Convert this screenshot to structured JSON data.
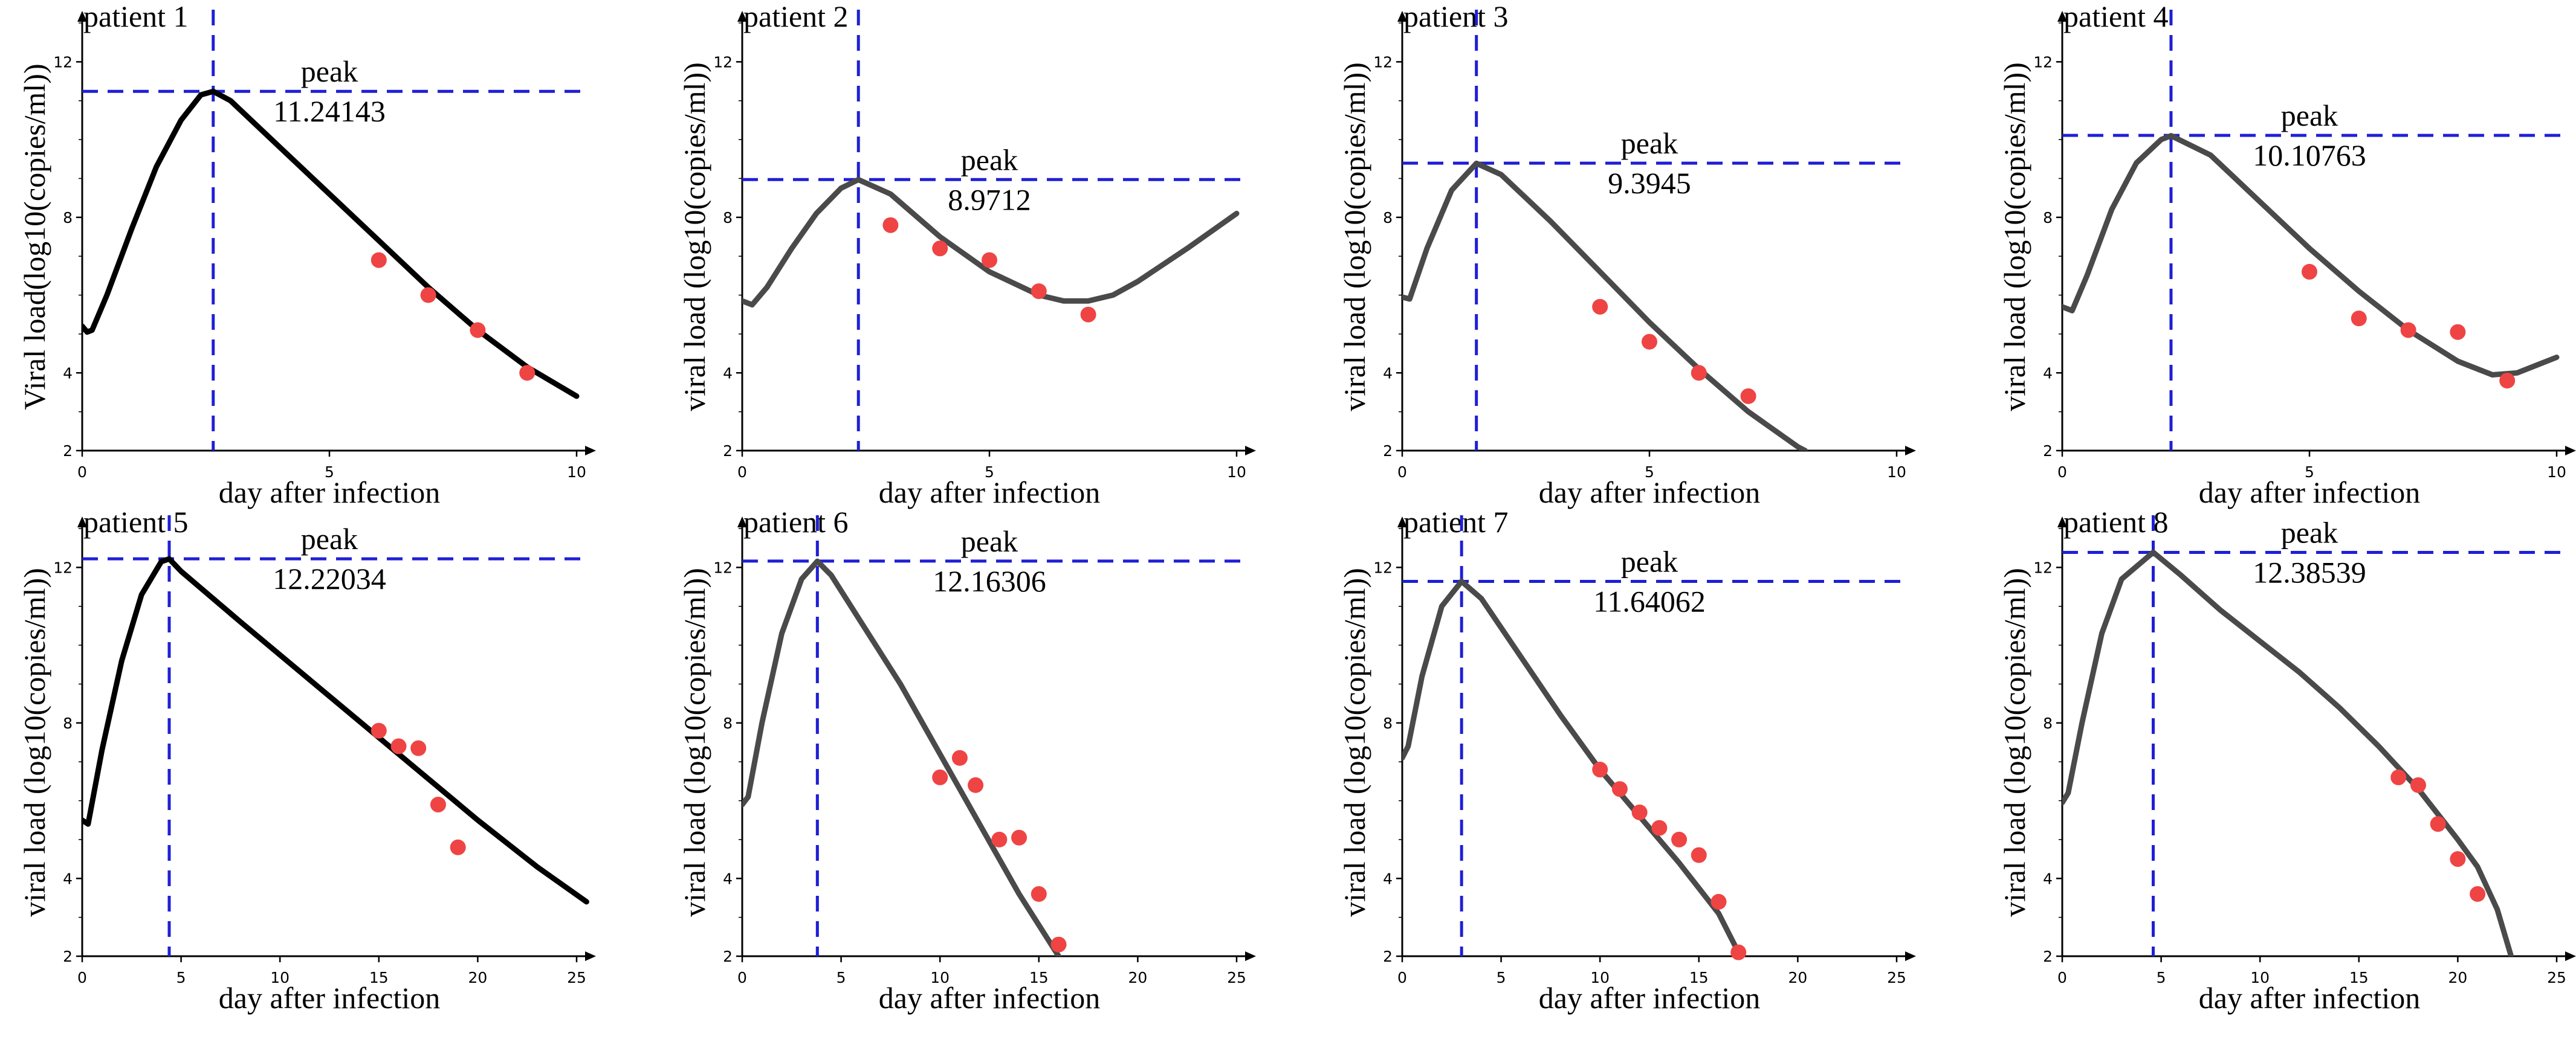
{
  "figure": {
    "description_free": true
  },
  "style": {
    "curve_dark": "#000000",
    "curve_gray": "#4a4a4a",
    "ref_line": "#1f1fd6",
    "point": "#ef4444",
    "axis": "#000000"
  },
  "chart_data": [
    {
      "type": "line",
      "panel_title": "patient 1",
      "xlabel": "day after infection",
      "ylabel": "Viral load(log10(copies/ml))",
      "xlim": [
        0,
        10
      ],
      "ylim": [
        2,
        13
      ],
      "xticks": [
        0,
        5,
        10
      ],
      "yticks": [
        2,
        4,
        8,
        12
      ],
      "peak_label": "peak",
      "peak_value": "11.24143",
      "peak_x": 2.65,
      "peak_y": 11.24143,
      "curve_color": "dark",
      "curve": [
        [
          0,
          5.2
        ],
        [
          0.1,
          5.05
        ],
        [
          0.2,
          5.1
        ],
        [
          0.5,
          6.0
        ],
        [
          1,
          7.7
        ],
        [
          1.5,
          9.3
        ],
        [
          2,
          10.5
        ],
        [
          2.4,
          11.15
        ],
        [
          2.65,
          11.24
        ],
        [
          3,
          11.0
        ],
        [
          4,
          9.8
        ],
        [
          5,
          8.6
        ],
        [
          6,
          7.4
        ],
        [
          7,
          6.2
        ],
        [
          8,
          5.1
        ],
        [
          9,
          4.15
        ],
        [
          10,
          3.4
        ]
      ],
      "points": [
        [
          6,
          6.9
        ],
        [
          7,
          6.0
        ],
        [
          8,
          5.1
        ],
        [
          9,
          4.0
        ]
      ]
    },
    {
      "type": "line",
      "panel_title": "patient 2",
      "xlabel": "day after infection",
      "ylabel": "viral load (log10(copies/ml))",
      "xlim": [
        0,
        10
      ],
      "ylim": [
        2,
        13
      ],
      "xticks": [
        0,
        5,
        10
      ],
      "yticks": [
        2,
        4,
        8,
        12
      ],
      "peak_label": "peak",
      "peak_value": "8.9712",
      "peak_x": 2.35,
      "peak_y": 8.9712,
      "curve_color": "gray",
      "curve": [
        [
          0,
          5.85
        ],
        [
          0.2,
          5.75
        ],
        [
          0.5,
          6.2
        ],
        [
          1,
          7.2
        ],
        [
          1.5,
          8.1
        ],
        [
          2,
          8.75
        ],
        [
          2.35,
          8.97
        ],
        [
          3,
          8.6
        ],
        [
          4,
          7.5
        ],
        [
          5,
          6.6
        ],
        [
          6,
          6.0
        ],
        [
          6.5,
          5.85
        ],
        [
          7,
          5.85
        ],
        [
          7.5,
          6.0
        ],
        [
          8,
          6.35
        ],
        [
          9,
          7.2
        ],
        [
          10,
          8.1
        ]
      ],
      "points": [
        [
          3,
          7.8
        ],
        [
          4,
          7.2
        ],
        [
          5,
          6.9
        ],
        [
          6,
          6.1
        ],
        [
          7,
          5.5
        ]
      ]
    },
    {
      "type": "line",
      "panel_title": "patient 3",
      "xlabel": "day after infection",
      "ylabel": "viral load (log10(copies/ml))",
      "xlim": [
        0,
        10
      ],
      "ylim": [
        2,
        13
      ],
      "xticks": [
        0,
        5,
        10
      ],
      "yticks": [
        2,
        4,
        8,
        12
      ],
      "peak_label": "peak",
      "peak_value": "9.3945",
      "peak_x": 1.5,
      "peak_y": 9.3945,
      "curve_color": "gray",
      "curve": [
        [
          0,
          5.95
        ],
        [
          0.15,
          5.9
        ],
        [
          0.5,
          7.2
        ],
        [
          1,
          8.7
        ],
        [
          1.5,
          9.39
        ],
        [
          2,
          9.1
        ],
        [
          3,
          7.9
        ],
        [
          4,
          6.6
        ],
        [
          5,
          5.3
        ],
        [
          6,
          4.1
        ],
        [
          7,
          3.0
        ],
        [
          8,
          2.1
        ],
        [
          8.15,
          2.0
        ]
      ],
      "points": [
        [
          4,
          5.7
        ],
        [
          5,
          4.8
        ],
        [
          6,
          4.0
        ],
        [
          7,
          3.4
        ]
      ]
    },
    {
      "type": "line",
      "panel_title": "patient 4",
      "xlabel": "day after infection",
      "ylabel": "viral load (log10(copies/ml))",
      "xlim": [
        0,
        10
      ],
      "ylim": [
        2,
        13
      ],
      "xticks": [
        0,
        5,
        10
      ],
      "yticks": [
        2,
        4,
        8,
        12
      ],
      "peak_label": "peak",
      "peak_value": "10.10763",
      "peak_x": 2.2,
      "peak_y": 10.10763,
      "curve_color": "gray",
      "curve": [
        [
          0,
          5.7
        ],
        [
          0.2,
          5.6
        ],
        [
          0.5,
          6.5
        ],
        [
          1,
          8.2
        ],
        [
          1.5,
          9.4
        ],
        [
          2,
          10.0
        ],
        [
          2.2,
          10.1
        ],
        [
          3,
          9.6
        ],
        [
          4,
          8.4
        ],
        [
          5,
          7.2
        ],
        [
          6,
          6.1
        ],
        [
          7,
          5.1
        ],
        [
          8,
          4.3
        ],
        [
          8.7,
          3.95
        ],
        [
          9.2,
          4.0
        ],
        [
          10,
          4.4
        ]
      ],
      "points": [
        [
          5,
          6.6
        ],
        [
          6,
          5.4
        ],
        [
          7,
          5.1
        ],
        [
          8,
          5.05
        ],
        [
          9,
          3.8
        ]
      ]
    },
    {
      "type": "line",
      "panel_title": "patient 5",
      "xlabel": "day after infection",
      "ylabel": "viral load (log10(copies/ml))",
      "xlim": [
        0,
        25
      ],
      "ylim": [
        2,
        13
      ],
      "xticks": [
        0,
        5,
        10,
        15,
        20,
        25
      ],
      "yticks": [
        2,
        4,
        8,
        12
      ],
      "peak_label": "peak",
      "peak_value": "12.22034",
      "peak_x": 4.4,
      "peak_y": 12.22034,
      "curve_color": "dark",
      "curve": [
        [
          0,
          5.5
        ],
        [
          0.3,
          5.4
        ],
        [
          1,
          7.3
        ],
        [
          2,
          9.6
        ],
        [
          3,
          11.3
        ],
        [
          4,
          12.15
        ],
        [
          4.4,
          12.22
        ],
        [
          5,
          11.9
        ],
        [
          8,
          10.6
        ],
        [
          12,
          8.9
        ],
        [
          16,
          7.2
        ],
        [
          20,
          5.5
        ],
        [
          23,
          4.3
        ],
        [
          25.5,
          3.4
        ]
      ],
      "points": [
        [
          15,
          7.8
        ],
        [
          16,
          7.4
        ],
        [
          17,
          7.35
        ],
        [
          18,
          5.9
        ],
        [
          19,
          4.8
        ]
      ]
    },
    {
      "type": "line",
      "panel_title": "patient 6",
      "xlabel": "day after infection",
      "ylabel": "viral load (log10(copies/ml))",
      "xlim": [
        0,
        25
      ],
      "ylim": [
        2,
        13
      ],
      "xticks": [
        0,
        5,
        10,
        15,
        20,
        25
      ],
      "yticks": [
        2,
        4,
        8,
        12
      ],
      "peak_label": "peak",
      "peak_value": "12.16306",
      "peak_x": 3.8,
      "peak_y": 12.16306,
      "curve_color": "gray",
      "curve": [
        [
          0,
          5.9
        ],
        [
          0.3,
          6.1
        ],
        [
          1,
          8.0
        ],
        [
          2,
          10.3
        ],
        [
          3,
          11.7
        ],
        [
          3.8,
          12.16
        ],
        [
          4.5,
          11.8
        ],
        [
          6,
          10.6
        ],
        [
          8,
          9.0
        ],
        [
          10,
          7.2
        ],
        [
          12,
          5.4
        ],
        [
          14,
          3.6
        ],
        [
          15.5,
          2.4
        ],
        [
          16,
          2.0
        ]
      ],
      "points": [
        [
          10,
          6.6
        ],
        [
          11,
          7.1
        ],
        [
          11.8,
          6.4
        ],
        [
          13,
          5.0
        ],
        [
          14,
          5.05
        ],
        [
          15,
          3.6
        ],
        [
          16,
          2.3
        ]
      ]
    },
    {
      "type": "line",
      "panel_title": "patient 7",
      "xlabel": "day after infection",
      "ylabel": "viral load (log10(copies/ml))",
      "xlim": [
        0,
        25
      ],
      "ylim": [
        2,
        13
      ],
      "xticks": [
        0,
        5,
        10,
        15,
        20,
        25
      ],
      "yticks": [
        2,
        4,
        8,
        12
      ],
      "peak_label": "peak",
      "peak_value": "11.64062",
      "peak_x": 3.0,
      "peak_y": 11.64062,
      "curve_color": "gray",
      "curve": [
        [
          0,
          7.1
        ],
        [
          0.3,
          7.4
        ],
        [
          1,
          9.2
        ],
        [
          2,
          11.0
        ],
        [
          3,
          11.64
        ],
        [
          4,
          11.2
        ],
        [
          6,
          9.7
        ],
        [
          8,
          8.2
        ],
        [
          10,
          6.8
        ],
        [
          12,
          5.6
        ],
        [
          14,
          4.4
        ],
        [
          16,
          3.1
        ],
        [
          17,
          2.1
        ],
        [
          17.2,
          2.0
        ]
      ],
      "points": [
        [
          10,
          6.8
        ],
        [
          11,
          6.3
        ],
        [
          12,
          5.7
        ],
        [
          13,
          5.3
        ],
        [
          14,
          5.0
        ],
        [
          15,
          4.6
        ],
        [
          16,
          3.4
        ],
        [
          17,
          2.1
        ]
      ]
    },
    {
      "type": "line",
      "panel_title": "patient 8",
      "xlabel": "day after infection",
      "ylabel": "viral load (log10(copies/ml))",
      "xlim": [
        0,
        25
      ],
      "ylim": [
        2,
        13
      ],
      "xticks": [
        0,
        5,
        10,
        15,
        20,
        25
      ],
      "yticks": [
        2,
        4,
        8,
        12
      ],
      "peak_label": "peak",
      "peak_value": "12.38539",
      "peak_x": 4.6,
      "peak_y": 12.38539,
      "curve_color": "gray",
      "curve": [
        [
          0,
          5.95
        ],
        [
          0.3,
          6.2
        ],
        [
          1,
          8.0
        ],
        [
          2,
          10.3
        ],
        [
          3,
          11.7
        ],
        [
          4.6,
          12.39
        ],
        [
          6,
          11.8
        ],
        [
          8,
          10.9
        ],
        [
          10,
          10.1
        ],
        [
          12,
          9.3
        ],
        [
          14,
          8.4
        ],
        [
          16,
          7.4
        ],
        [
          18,
          6.3
        ],
        [
          20,
          5.0
        ],
        [
          21,
          4.3
        ],
        [
          22,
          3.2
        ],
        [
          22.7,
          2.0
        ]
      ],
      "points": [
        [
          17,
          6.6
        ],
        [
          18,
          6.4
        ],
        [
          19,
          5.4
        ],
        [
          20,
          4.5
        ],
        [
          21,
          3.6
        ]
      ]
    }
  ]
}
